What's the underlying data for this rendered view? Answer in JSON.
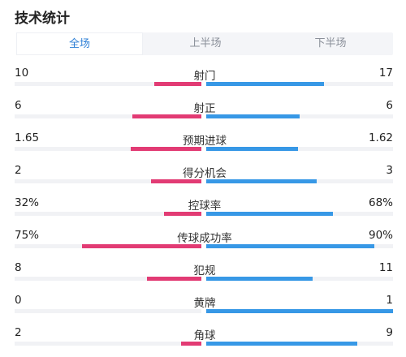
{
  "title": "技术统计",
  "tabs": [
    "全场",
    "上半场",
    "下半场"
  ],
  "active_tab": 0,
  "colors": {
    "home": "#e23b74",
    "away": "#3798e6",
    "track": "#f1f2f5",
    "active_tab": "#2d7fd6"
  },
  "stats": [
    {
      "label": "射门",
      "home": "10",
      "away": "17",
      "home_fill": 0.25,
      "away_fill": 0.63
    },
    {
      "label": "射正",
      "home": "6",
      "away": "6",
      "home_fill": 0.37,
      "away_fill": 0.5
    },
    {
      "label": "预期进球",
      "home": "1.65",
      "away": "1.62",
      "home_fill": 0.38,
      "away_fill": 0.49
    },
    {
      "label": "得分机会",
      "home": "2",
      "away": "3",
      "home_fill": 0.27,
      "away_fill": 0.59
    },
    {
      "label": "控球率",
      "home": "32%",
      "away": "68%",
      "home_fill": 0.2,
      "away_fill": 0.68
    },
    {
      "label": "传球成功率",
      "home": "75%",
      "away": "90%",
      "home_fill": 0.64,
      "away_fill": 0.9
    },
    {
      "label": "犯规",
      "home": "8",
      "away": "11",
      "home_fill": 0.29,
      "away_fill": 0.57
    },
    {
      "label": "黄牌",
      "home": "0",
      "away": "1",
      "home_fill": 0.0,
      "away_fill": 1.0
    },
    {
      "label": "角球",
      "home": "2",
      "away": "9",
      "home_fill": 0.11,
      "away_fill": 0.81
    }
  ]
}
